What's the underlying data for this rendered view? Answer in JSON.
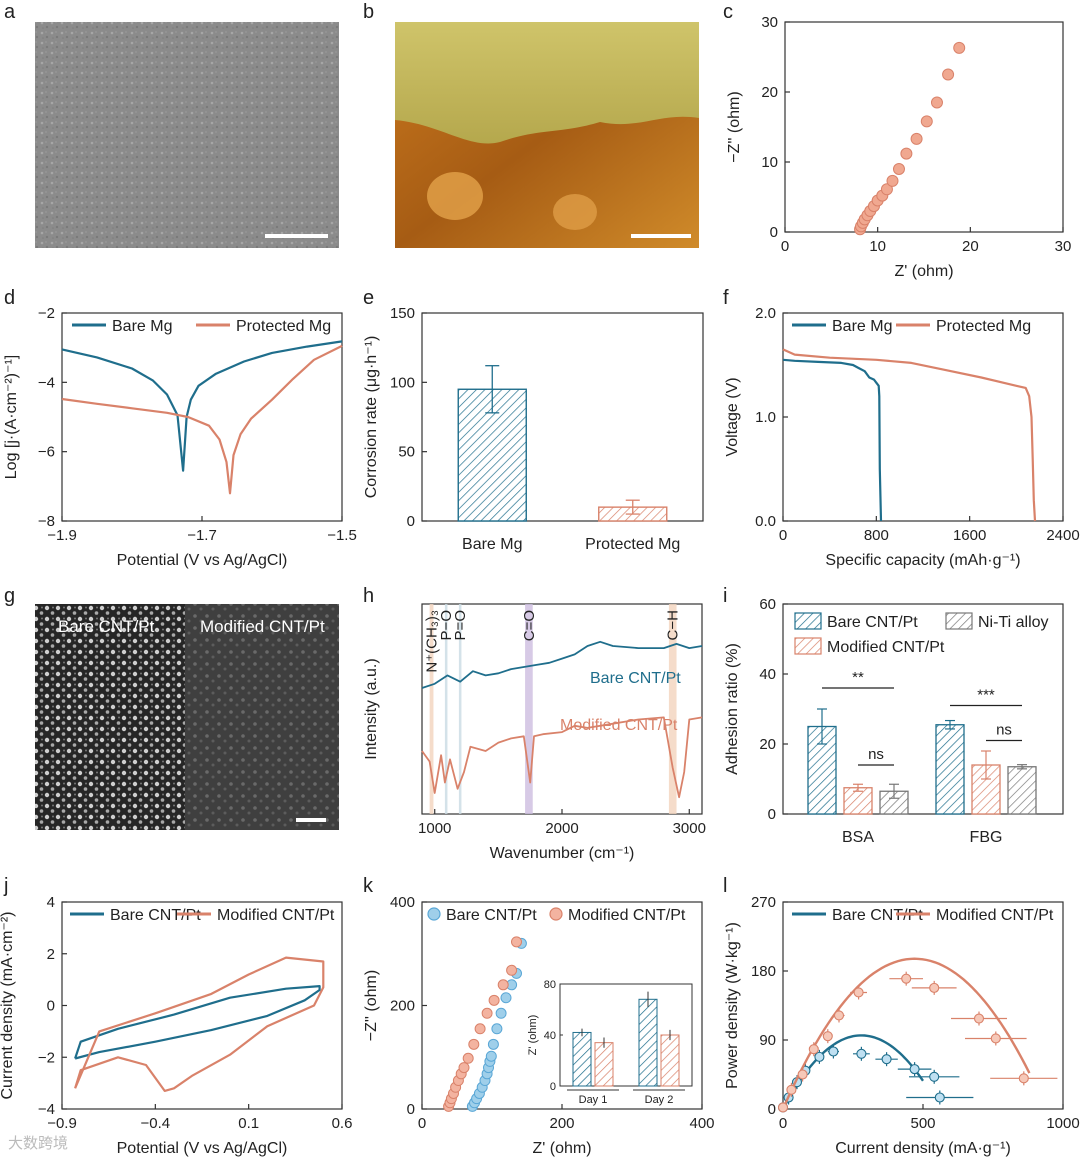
{
  "panels": {
    "a": {
      "label": "a"
    },
    "b": {
      "label": "b"
    },
    "g": {
      "label": "g",
      "left_label": "Bare CNT/Pt",
      "right_label": "Modified CNT/Pt"
    }
  },
  "colors": {
    "bare": "#1f6e8c",
    "protected": "#d9826a",
    "modified": "#d9826a",
    "niti": "#8a8a8a",
    "open_blue": "#5aa7d6",
    "open_orange": "#f0a890"
  },
  "footer": {
    "watermark": "大数跨境"
  },
  "chart_data": [
    {
      "panel": "c",
      "type": "scatter",
      "xlabel": "Z' (ohm)",
      "ylabel": "−Z'' (ohm)",
      "xlim": [
        0,
        30
      ],
      "ylim": [
        0,
        30
      ],
      "xticks": [
        "0",
        "10",
        "20",
        "30"
      ],
      "yticks": [
        "0",
        "10",
        "20",
        "30"
      ],
      "series": [
        {
          "x": [
            8.1,
            8.2,
            8.4,
            8.6,
            8.9,
            9.2,
            9.6,
            10.0,
            10.5,
            11.0,
            11.6,
            12.3,
            13.1,
            14.2,
            15.3,
            16.4,
            17.6,
            18.8
          ],
          "y": [
            0.4,
            0.8,
            1.3,
            1.8,
            2.4,
            3.0,
            3.7,
            4.5,
            5.2,
            6.1,
            7.3,
            9.0,
            11.2,
            13.3,
            15.8,
            18.5,
            22.5,
            26.3
          ]
        }
      ]
    },
    {
      "panel": "d",
      "type": "line",
      "xlabel": "Potential (V vs Ag/AgCl)",
      "ylabel": "Log [j·(A·cm⁻²)⁻¹]",
      "xlim": [
        -1.9,
        -1.5
      ],
      "ylim": [
        -8,
        -2
      ],
      "xticks": [
        "−1.9",
        "−1.7",
        "−1.5"
      ],
      "yticks": [
        "−8",
        "−6",
        "−4",
        "−2"
      ],
      "legend": [
        "Bare Mg",
        "Protected Mg"
      ],
      "series": [
        {
          "name": "Bare Mg",
          "x": [
            -1.9,
            -1.85,
            -1.8,
            -1.77,
            -1.75,
            -1.735,
            -1.727,
            -1.722,
            -1.716,
            -1.705,
            -1.68,
            -1.64,
            -1.6,
            -1.55,
            -1.5
          ],
          "y": [
            -3.05,
            -3.28,
            -3.6,
            -3.95,
            -4.35,
            -4.95,
            -6.55,
            -5.0,
            -4.5,
            -4.1,
            -3.75,
            -3.4,
            -3.15,
            -2.97,
            -2.82
          ]
        },
        {
          "name": "Protected Mg",
          "x": [
            -1.9,
            -1.85,
            -1.8,
            -1.75,
            -1.72,
            -1.69,
            -1.675,
            -1.665,
            -1.66,
            -1.655,
            -1.645,
            -1.63,
            -1.6,
            -1.57,
            -1.54,
            -1.5
          ],
          "y": [
            -4.48,
            -4.62,
            -4.75,
            -4.88,
            -5.0,
            -5.25,
            -5.65,
            -6.3,
            -7.2,
            -6.1,
            -5.5,
            -5.05,
            -4.5,
            -3.9,
            -3.35,
            -2.95
          ]
        }
      ]
    },
    {
      "panel": "e",
      "type": "bar",
      "ylabel": "Corrosion rate (μg·h⁻¹)",
      "ylim": [
        0,
        150
      ],
      "yticks": [
        "0",
        "50",
        "100",
        "150"
      ],
      "categories": [
        "Bare Mg",
        "Protected Mg"
      ],
      "values": [
        95,
        10
      ],
      "errors": [
        17,
        5
      ]
    },
    {
      "panel": "f",
      "type": "line",
      "xlabel": "Specific capacity (mAh·g⁻¹)",
      "ylabel": "Voltage (V)",
      "xlim": [
        0,
        2400
      ],
      "ylim": [
        0,
        2.0
      ],
      "xticks": [
        "0",
        "800",
        "1600",
        "2400"
      ],
      "yticks": [
        "0.0",
        "1.0",
        "2.0"
      ],
      "legend": [
        "Bare Mg",
        "Protected Mg"
      ],
      "series": [
        {
          "name": "Bare Mg",
          "x": [
            0,
            100,
            300,
            500,
            600,
            650,
            700,
            740,
            780,
            800,
            820,
            825,
            830,
            840
          ],
          "y": [
            1.55,
            1.54,
            1.53,
            1.52,
            1.5,
            1.47,
            1.44,
            1.38,
            1.36,
            1.33,
            1.3,
            1.2,
            0.5,
            0.0
          ]
        },
        {
          "name": "Protected Mg",
          "x": [
            0,
            100,
            400,
            800,
            1100,
            1400,
            1700,
            2000,
            2080,
            2110,
            2130,
            2140,
            2150,
            2160
          ],
          "y": [
            1.65,
            1.6,
            1.57,
            1.55,
            1.52,
            1.45,
            1.38,
            1.3,
            1.28,
            1.2,
            1.0,
            0.6,
            0.2,
            0.0
          ]
        }
      ]
    },
    {
      "panel": "h",
      "type": "line",
      "xlabel": "Wavenumber (cm⁻¹)",
      "ylabel": "Intensity (a.u.)",
      "xlim": [
        900,
        3100
      ],
      "xticks": [
        "1000",
        "2000",
        "3000"
      ],
      "bands": [
        "N⁺(CH₃)₃",
        "P−O",
        "P=O",
        "C=O",
        "C−H"
      ],
      "series": [
        {
          "name": "Bare CNT/Pt",
          "x": [
            900,
            1000,
            1100,
            1200,
            1300,
            1400,
            1500,
            1600,
            1700,
            1800,
            1900,
            2000,
            2100,
            2200,
            2300,
            2400,
            2600,
            2800,
            2900,
            3000,
            3100
          ],
          "y": [
            0.6,
            0.62,
            0.66,
            0.63,
            0.68,
            0.66,
            0.67,
            0.69,
            0.7,
            0.71,
            0.72,
            0.74,
            0.76,
            0.8,
            0.82,
            0.8,
            0.79,
            0.79,
            0.81,
            0.79,
            0.8
          ]
        },
        {
          "name": "Modified CNT/Pt",
          "x": [
            900,
            960,
            1000,
            1050,
            1080,
            1120,
            1180,
            1230,
            1280,
            1400,
            1500,
            1600,
            1700,
            1750,
            1780,
            1850,
            2000,
            2100,
            2200,
            2400,
            2600,
            2800,
            2870,
            2920,
            2960,
            3000,
            3100
          ],
          "y": [
            0.3,
            0.25,
            0.1,
            0.28,
            0.15,
            0.26,
            0.12,
            0.2,
            0.32,
            0.3,
            0.34,
            0.36,
            0.37,
            0.15,
            0.37,
            0.38,
            0.39,
            0.42,
            0.41,
            0.43,
            0.45,
            0.46,
            0.22,
            0.08,
            0.2,
            0.45,
            0.46
          ]
        }
      ]
    },
    {
      "panel": "i",
      "type": "bar",
      "ylabel": "Adhesion ratio (%)",
      "ylim": [
        0,
        60
      ],
      "yticks": [
        "0",
        "20",
        "40",
        "60"
      ],
      "categories": [
        "BSA",
        "FBG"
      ],
      "legend": [
        "Bare CNT/Pt",
        "Ni-Ti alloy",
        "Modified CNT/Pt"
      ],
      "series": [
        {
          "name": "Bare CNT/Pt",
          "values": [
            25,
            25.5
          ],
          "errors": [
            5,
            1.2
          ]
        },
        {
          "name": "Modified CNT/Pt",
          "values": [
            7.5,
            14
          ],
          "errors": [
            1,
            4
          ]
        },
        {
          "name": "Ni-Ti alloy",
          "values": [
            6.5,
            13.5
          ],
          "errors": [
            2,
            0.6
          ]
        }
      ],
      "annotations": [
        "**",
        "ns",
        "***",
        "ns"
      ]
    },
    {
      "panel": "j",
      "type": "line",
      "xlabel": "Potential  (V vs Ag/AgCl)",
      "ylabel": "Current density (mA·cm⁻²)",
      "xlim": [
        -0.9,
        0.6
      ],
      "ylim": [
        -4,
        4
      ],
      "xticks": [
        "−0.9",
        "−0.4",
        "0.1",
        "0.6"
      ],
      "yticks": [
        "−4",
        "−2",
        "0",
        "2",
        "4"
      ],
      "legend": [
        "Bare CNT/Pt",
        "Modified CNT/Pt"
      ],
      "series": [
        {
          "name": "Bare CNT/Pt",
          "x": [
            -0.83,
            -0.7,
            -0.4,
            -0.1,
            0.2,
            0.4,
            0.48,
            0.48,
            0.3,
            0.0,
            -0.3,
            -0.6,
            -0.8,
            -0.83
          ],
          "y": [
            -2.05,
            -1.8,
            -1.4,
            -0.95,
            -0.4,
            0.2,
            0.6,
            0.75,
            0.65,
            0.3,
            -0.35,
            -0.9,
            -1.4,
            -2.05
          ]
        },
        {
          "name": "Modified CNT/Pt",
          "x": [
            -0.83,
            -0.8,
            -0.6,
            -0.45,
            -0.35,
            -0.3,
            -0.2,
            0.0,
            0.2,
            0.45,
            0.5,
            0.5,
            0.3,
            0.1,
            -0.1,
            -0.4,
            -0.7,
            -0.83
          ],
          "y": [
            -3.2,
            -2.5,
            -2.0,
            -2.3,
            -3.3,
            -3.2,
            -2.7,
            -1.9,
            -0.8,
            0.0,
            0.7,
            1.7,
            1.85,
            1.2,
            0.45,
            -0.3,
            -1.0,
            -3.2
          ]
        }
      ]
    },
    {
      "panel": "k",
      "type": "scatter",
      "xlabel": "Z' (ohm)",
      "ylabel": "−Z'' (ohm)",
      "xlim": [
        0,
        400
      ],
      "ylim": [
        0,
        400
      ],
      "xticks": [
        "0",
        "200",
        "400"
      ],
      "yticks": [
        "0",
        "200",
        "400"
      ],
      "legend": [
        "Bare CNT/Pt",
        "Modified CNT/Pt"
      ],
      "series": [
        {
          "name": "Bare CNT/Pt",
          "x": [
            72,
            75,
            78,
            82,
            86,
            90,
            93,
            95,
            97,
            99,
            102,
            107,
            113,
            120,
            128,
            135,
            142
          ],
          "y": [
            5,
            12,
            20,
            30,
            42,
            55,
            68,
            80,
            92,
            102,
            125,
            155,
            185,
            215,
            240,
            262,
            320
          ]
        },
        {
          "name": "Modified CNT/Pt",
          "x": [
            38,
            40,
            42,
            45,
            48,
            52,
            56,
            60,
            66,
            74,
            83,
            93,
            103,
            116,
            128,
            135
          ],
          "y": [
            5,
            12,
            20,
            30,
            42,
            55,
            68,
            80,
            98,
            125,
            155,
            185,
            210,
            240,
            268,
            323
          ]
        }
      ],
      "inset": {
        "type": "bar",
        "ylabel": "Z' (ohm)",
        "ylim": [
          0,
          80
        ],
        "yticks": [
          "0",
          "40",
          "80"
        ],
        "categories": [
          "Day 1",
          "Day 2"
        ],
        "series": [
          {
            "name": "Bare CNT/Pt",
            "values": [
              42,
              68
            ],
            "errors": [
              3,
              6
            ]
          },
          {
            "name": "Modified CNT/Pt",
            "values": [
              34,
              40
            ],
            "errors": [
              4,
              4
            ]
          }
        ]
      }
    },
    {
      "panel": "l",
      "type": "scatter",
      "xlabel": "Current density (mA·g⁻¹)",
      "ylabel": "Power density (W·kg⁻¹)",
      "xlim": [
        0,
        1000
      ],
      "ylim": [
        0,
        270
      ],
      "xticks": [
        "0",
        "500",
        "1000"
      ],
      "yticks": [
        "0",
        "90",
        "180",
        "270"
      ],
      "legend": [
        "Bare CNT/Pt",
        "Modified CNT/Pt"
      ],
      "series": [
        {
          "name": "Bare CNT/Pt",
          "x": [
            0,
            20,
            50,
            80,
            130,
            180,
            280,
            370,
            470,
            540,
            560
          ],
          "y": [
            2,
            15,
            35,
            50,
            68,
            75,
            72,
            65,
            52,
            42,
            15
          ],
          "xerr": [
            0,
            5,
            10,
            10,
            15,
            20,
            30,
            40,
            60,
            90,
            120
          ],
          "fit": {
            "peak_x": 280,
            "peak_y": 96
          }
        },
        {
          "name": "Modified CNT/Pt",
          "x": [
            0,
            30,
            70,
            110,
            160,
            200,
            270,
            440,
            540,
            700,
            760,
            860
          ],
          "y": [
            2,
            25,
            45,
            78,
            95,
            122,
            152,
            170,
            158,
            118,
            92,
            40
          ],
          "xerr": [
            0,
            5,
            10,
            10,
            15,
            20,
            30,
            60,
            80,
            100,
            110,
            120
          ],
          "fit": {
            "peak_x": 470,
            "peak_y": 196
          }
        }
      ]
    }
  ]
}
